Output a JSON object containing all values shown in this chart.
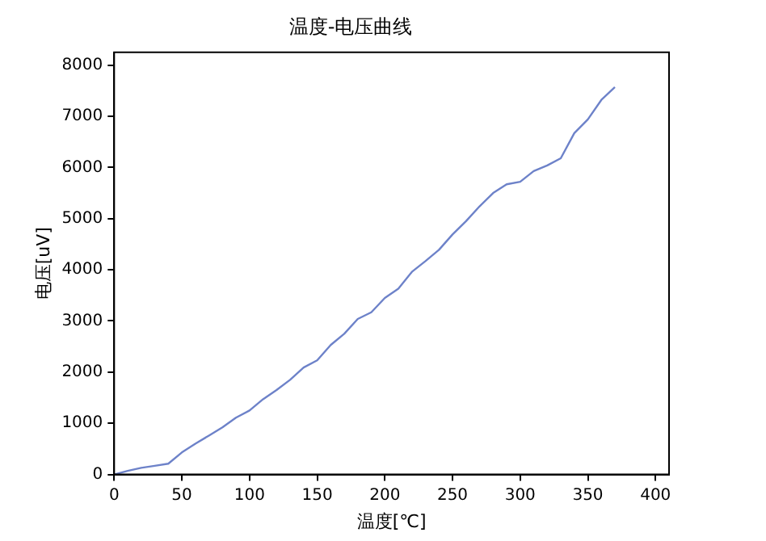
{
  "chart_data": {
    "type": "line",
    "title": "温度-电压曲线",
    "xlabel": "温度[℃]",
    "ylabel": "电压[uV]",
    "x": [
      0,
      10,
      20,
      30,
      40,
      50,
      60,
      70,
      80,
      90,
      100,
      110,
      120,
      130,
      140,
      150,
      160,
      170,
      180,
      190,
      200,
      210,
      220,
      230,
      240,
      250,
      260,
      270,
      280,
      290,
      300,
      310,
      320,
      330,
      340,
      350,
      360,
      370
    ],
    "series": [
      {
        "color": "#6d82c9",
        "values": [
          0,
          70,
          130,
          170,
          210,
          430,
          600,
          760,
          920,
          1110,
          1250,
          1470,
          1650,
          1850,
          2090,
          2230,
          2530,
          2750,
          3040,
          3170,
          3450,
          3630,
          3960,
          4170,
          4390,
          4690,
          4950,
          5240,
          5500,
          5670,
          5720,
          5930,
          6040,
          6180,
          6670,
          6940,
          7320,
          7570
        ]
      }
    ],
    "xlim": [
      0,
      410
    ],
    "xticks": [
      0,
      50,
      100,
      150,
      200,
      250,
      300,
      350,
      400
    ],
    "ylim": [
      0,
      8250
    ],
    "yticks": [
      0,
      1000,
      2000,
      3000,
      4000,
      5000,
      6000,
      7000,
      8000
    ],
    "grid": false,
    "legend": false,
    "marker": "none",
    "line_style": "solid"
  }
}
